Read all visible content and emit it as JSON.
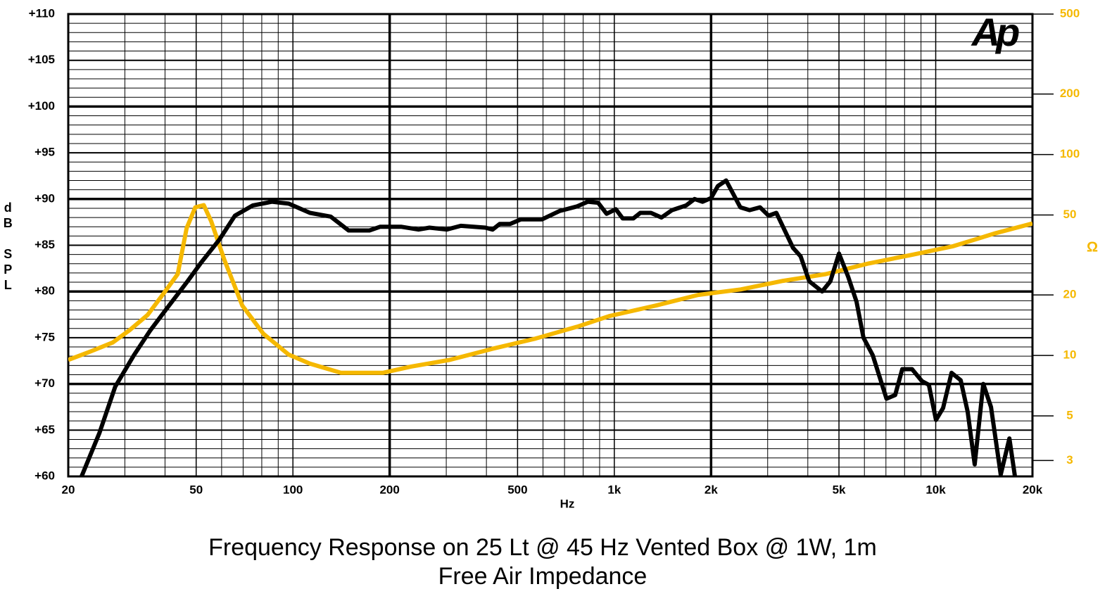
{
  "chart_data": {
    "type": "line",
    "title": "Frequency Response on 25 Lt @ 45 Hz Vented Box @ 1W, 1m",
    "subtitle": "Free Air Impedance",
    "xlabel": "Hz",
    "ylabel": "dB SPL",
    "y2label": "Ω",
    "logo": "Ap",
    "xscale": "log",
    "y2scale": "log",
    "grid": true,
    "xlim": [
      20,
      20000
    ],
    "xticks": [
      20,
      50,
      100,
      200,
      500,
      {
        "value": 1000,
        "label": "1k"
      },
      {
        "value": 2000,
        "label": "2k"
      },
      {
        "value": 5000,
        "label": "5k"
      },
      {
        "value": 10000,
        "label": "10k"
      },
      {
        "value": 20000,
        "label": "20k"
      }
    ],
    "x_minor_grid": [
      30,
      40,
      60,
      70,
      80,
      90,
      300,
      400,
      600,
      700,
      800,
      900,
      3000,
      4000,
      6000,
      7000,
      8000,
      9000
    ],
    "x_bold_grid": [
      200,
      2000
    ],
    "ylim": [
      60,
      110
    ],
    "yticks": [
      {
        "value": 60,
        "label": "+60"
      },
      {
        "value": 65,
        "label": "+65"
      },
      {
        "value": 70,
        "label": "+70"
      },
      {
        "value": 75,
        "label": "+75"
      },
      {
        "value": 80,
        "label": "+80"
      },
      {
        "value": 85,
        "label": "+85"
      },
      {
        "value": 90,
        "label": "+90"
      },
      {
        "value": 95,
        "label": "+95"
      },
      {
        "value": 100,
        "label": "+100"
      },
      {
        "value": 105,
        "label": "+105"
      },
      {
        "value": 110,
        "label": "+110"
      }
    ],
    "y_minor_grid": [
      61,
      62,
      63,
      64,
      66,
      67,
      68,
      69,
      71,
      72,
      73,
      74,
      76,
      77,
      78,
      79,
      81,
      82,
      83,
      84,
      86,
      87,
      88,
      89,
      91,
      92,
      93,
      94,
      96,
      97,
      98,
      99,
      101,
      102,
      103,
      104,
      106,
      107,
      108,
      109
    ],
    "y_bold_grid": [
      70,
      80,
      90,
      100
    ],
    "y2lim": [
      2.5,
      500
    ],
    "y2ticks": [
      3,
      5,
      10,
      20,
      50,
      100,
      200,
      500
    ],
    "y2color": "#f5b800",
    "series": [
      {
        "color": "#000000",
        "x": [
          22,
          25,
          28,
          32,
          36,
          41,
          47,
          52,
          59,
          66,
          75,
          86,
          97,
          113,
          131,
          149,
          173,
          187,
          217,
          246,
          266,
          301,
          333,
          397,
          418,
          440,
          474,
          512,
          596,
          675,
          766,
          826,
          890,
          946,
          1011,
          1062,
          1146,
          1205,
          1300,
          1402,
          1512,
          1672,
          1777,
          1880,
          2000,
          2100,
          2228,
          2466,
          2636,
          2840,
          3020,
          3192,
          3600,
          3800,
          4040,
          4430,
          4700,
          5000,
          5340,
          5670,
          5960,
          6370,
          7030,
          7480,
          7870,
          8440,
          9060,
          9520,
          10020,
          10540,
          11200,
          11960,
          12570,
          13220,
          14060,
          14860,
          15930,
          16950,
          17640
        ],
        "values": [
          60,
          64.7,
          69.7,
          73.1,
          75.8,
          78.4,
          81.1,
          83.2,
          85.6,
          88.2,
          89.3,
          89.7,
          89.5,
          88.5,
          88.1,
          86.6,
          86.6,
          87,
          87,
          86.7,
          86.9,
          86.7,
          87.1,
          86.9,
          86.7,
          87.3,
          87.3,
          87.8,
          87.8,
          88.7,
          89.2,
          89.7,
          89.6,
          88.4,
          88.9,
          87.9,
          87.9,
          88.5,
          88.5,
          88,
          88.8,
          89.3,
          90,
          89.7,
          90.1,
          91.4,
          92,
          89.1,
          88.8,
          89.1,
          88.2,
          88.5,
          84.7,
          83.8,
          81.1,
          80,
          81.1,
          84.1,
          81.6,
          78.9,
          75,
          73.1,
          68.4,
          68.8,
          71.6,
          71.6,
          70.3,
          69.9,
          66.1,
          67.4,
          71.2,
          70.4,
          67,
          61.3,
          70,
          67.5,
          60.2,
          64.1,
          60
        ]
      },
      {
        "color": "#f5b800",
        "axis": "y2",
        "x": [
          20,
          23.6,
          27.5,
          31.1,
          35.3,
          39.3,
          43.8,
          46.7,
          49.7,
          52.8,
          55.7,
          61.2,
          69.6,
          81,
          97,
          113,
          141,
          191,
          233,
          307,
          418,
          565,
          766,
          964,
          1343,
          1823,
          2472,
          3350,
          4550,
          6180,
          8370,
          11350,
          15380,
          20000
        ],
        "values": [
          9.5,
          10.5,
          11.6,
          13.4,
          15.9,
          20,
          25.4,
          43,
          54.6,
          56,
          46.5,
          29.9,
          17.7,
          12.8,
          10.1,
          9.1,
          8.2,
          8.2,
          8.8,
          9.5,
          10.8,
          12.1,
          13.9,
          15.7,
          17.7,
          20,
          21.3,
          23.5,
          25.4,
          28.7,
          31.6,
          35,
          40.6,
          45.4
        ]
      }
    ]
  }
}
